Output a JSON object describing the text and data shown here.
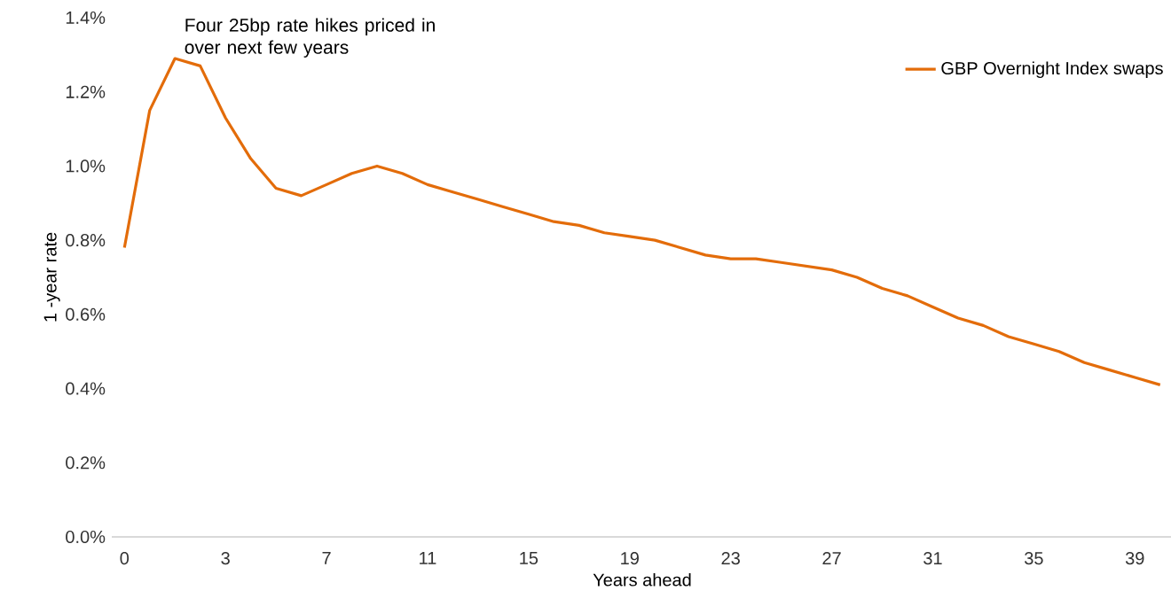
{
  "chart_data": {
    "type": "line",
    "annotations": [
      "Four 25bp rate hikes priced in over next few years"
    ],
    "xlabel": "Years ahead",
    "ylabel": "1 -year rate",
    "categories": [
      "0",
      null,
      null,
      null,
      "3",
      null,
      null,
      null,
      "7",
      null,
      null,
      null,
      "11",
      null,
      null,
      null,
      "15",
      null,
      null,
      null,
      "19",
      null,
      null,
      null,
      "23",
      null,
      null,
      null,
      "27",
      null,
      null,
      null,
      "31",
      null,
      null,
      null,
      "35",
      null,
      null,
      null,
      "39",
      null
    ],
    "series": [
      {
        "name": "GBP Overnight Index swaps",
        "color": "#e36c0a",
        "values": [
          0.78,
          1.15,
          1.29,
          1.27,
          1.13,
          1.02,
          0.94,
          0.92,
          0.95,
          0.98,
          1.0,
          0.98,
          0.95,
          0.93,
          0.91,
          0.89,
          0.87,
          0.85,
          0.84,
          0.82,
          0.81,
          0.8,
          0.78,
          0.76,
          0.75,
          0.75,
          0.74,
          0.73,
          0.72,
          0.7,
          0.67,
          0.65,
          0.62,
          0.59,
          0.57,
          0.54,
          0.52,
          0.5,
          0.47,
          0.45,
          0.43,
          0.41
        ]
      }
    ],
    "ylim": [
      0,
      1.4
    ],
    "yticks": [
      {
        "value": 0,
        "label": "0.0%"
      },
      {
        "value": 0.2,
        "label": "0.2%"
      },
      {
        "value": 0.4,
        "label": "0.4%"
      },
      {
        "value": 0.6,
        "label": "0.6%"
      },
      {
        "value": 0.8,
        "label": "0.8%"
      },
      {
        "value": 1.0,
        "label": "1.0%"
      },
      {
        "value": 1.2,
        "label": "1.2%"
      },
      {
        "value": 1.4,
        "label": "1.4%"
      }
    ],
    "legend": "top right",
    "grid": false,
    "marker": "none",
    "line_style": "solid"
  }
}
